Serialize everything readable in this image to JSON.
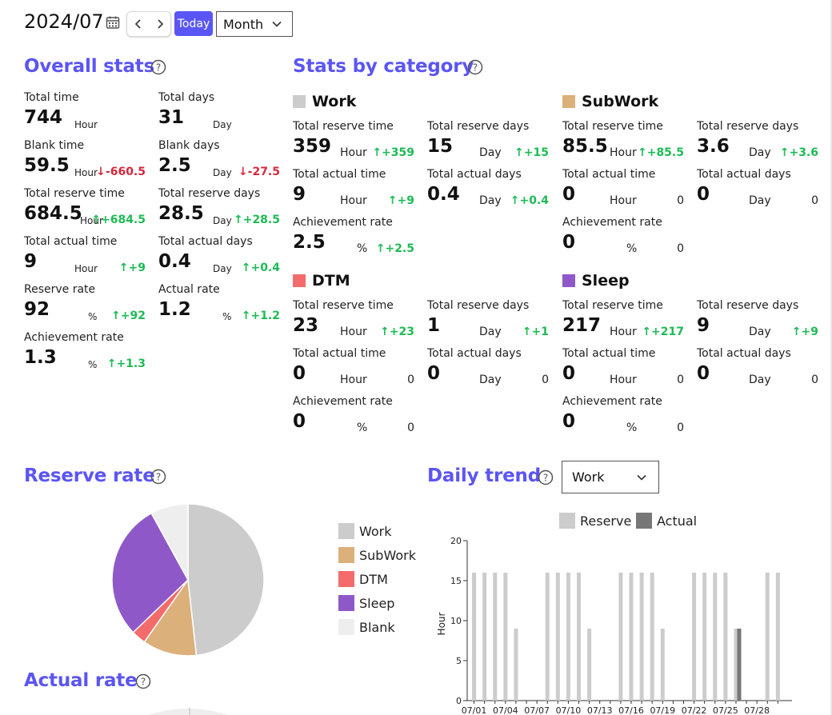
{
  "header": {
    "date": "2024/07",
    "today_label": "Today",
    "period_value": "Month"
  },
  "overall": {
    "title": "Overall stats",
    "stats": [
      {
        "label": "Total time",
        "value": "744",
        "unit": "Hour",
        "diff": ""
      },
      {
        "label": "Total days",
        "value": "31",
        "unit": "Day",
        "diff": ""
      },
      {
        "label": "Blank time",
        "value": "59.5",
        "unit": "Hour",
        "diff": "↓-660.5",
        "tone": "neg"
      },
      {
        "label": "Blank days",
        "value": "2.5",
        "unit": "Day",
        "diff": "↓-27.5",
        "tone": "neg"
      },
      {
        "label": "Total reserve time",
        "value": "684.5",
        "unit": "Hour",
        "diff": "↑+684.5",
        "tone": "pos"
      },
      {
        "label": "Total reserve days",
        "value": "28.5",
        "unit": "Day",
        "diff": "↑+28.5",
        "tone": "pos"
      },
      {
        "label": "Total actual time",
        "value": "9",
        "unit": "Hour",
        "diff": "↑+9",
        "tone": "pos"
      },
      {
        "label": "Total actual days",
        "value": "0.4",
        "unit": "Day",
        "diff": "↑+0.4",
        "tone": "pos"
      },
      {
        "label": "Reserve rate",
        "value": "92",
        "unit": "%",
        "diff": "↑+92",
        "tone": "pos"
      },
      {
        "label": "Actual rate",
        "value": "1.2",
        "unit": "%",
        "diff": "↑+1.2",
        "tone": "pos"
      },
      {
        "label": "Achievement rate",
        "value": "1.3",
        "unit": "%",
        "diff": "↑+1.3",
        "tone": "pos"
      }
    ]
  },
  "by_category": {
    "title": "Stats by category",
    "categories": [
      {
        "name": "Work",
        "color": "#cccccc",
        "stats": [
          {
            "label": "Total reserve time",
            "value": "359",
            "unit": "Hour",
            "diff": "↑+359",
            "tone": "pos"
          },
          {
            "label": "Total reserve days",
            "value": "15",
            "unit": "Day",
            "diff": "↑+15",
            "tone": "pos"
          },
          {
            "label": "Total actual time",
            "value": "9",
            "unit": "Hour",
            "diff": "↑+9",
            "tone": "pos"
          },
          {
            "label": "Total actual days",
            "value": "0.4",
            "unit": "Day",
            "diff": "↑+0.4",
            "tone": "pos"
          },
          {
            "label": "Achievement rate",
            "value": "2.5",
            "unit": "%",
            "diff": "↑+2.5",
            "tone": "pos"
          }
        ]
      },
      {
        "name": "SubWork",
        "color": "#dcb07a",
        "stats": [
          {
            "label": "Total reserve time",
            "value": "85.5",
            "unit": "Hour",
            "diff": "↑+85.5",
            "tone": "pos"
          },
          {
            "label": "Total reserve days",
            "value": "3.6",
            "unit": "Day",
            "diff": "↑+3.6",
            "tone": "pos"
          },
          {
            "label": "Total actual time",
            "value": "0",
            "unit": "Hour",
            "diff": "0",
            "tone": "zero"
          },
          {
            "label": "Total actual days",
            "value": "0",
            "unit": "Day",
            "diff": "0",
            "tone": "zero"
          },
          {
            "label": "Achievement rate",
            "value": "0",
            "unit": "%",
            "diff": "0",
            "tone": "zero"
          }
        ]
      },
      {
        "name": "DTM",
        "color": "#f46b6b",
        "stats": [
          {
            "label": "Total reserve time",
            "value": "23",
            "unit": "Hour",
            "diff": "↑+23",
            "tone": "pos"
          },
          {
            "label": "Total reserve days",
            "value": "1",
            "unit": "Day",
            "diff": "↑+1",
            "tone": "pos"
          },
          {
            "label": "Total actual time",
            "value": "0",
            "unit": "Hour",
            "diff": "0",
            "tone": "zero"
          },
          {
            "label": "Total actual days",
            "value": "0",
            "unit": "Day",
            "diff": "0",
            "tone": "zero"
          },
          {
            "label": "Achievement rate",
            "value": "0",
            "unit": "%",
            "diff": "0",
            "tone": "zero"
          }
        ]
      },
      {
        "name": "Sleep",
        "color": "#8f58c8",
        "stats": [
          {
            "label": "Total reserve time",
            "value": "217",
            "unit": "Hour",
            "diff": "↑+217",
            "tone": "pos"
          },
          {
            "label": "Total reserve days",
            "value": "9",
            "unit": "Day",
            "diff": "↑+9",
            "tone": "pos"
          },
          {
            "label": "Total actual time",
            "value": "0",
            "unit": "Hour",
            "diff": "0",
            "tone": "zero"
          },
          {
            "label": "Total actual days",
            "value": "0",
            "unit": "Day",
            "diff": "0",
            "tone": "zero"
          },
          {
            "label": "Achievement rate",
            "value": "0",
            "unit": "%",
            "diff": "0",
            "tone": "zero"
          }
        ]
      }
    ]
  },
  "reserve_rate": {
    "title": "Reserve rate"
  },
  "actual_rate": {
    "title": "Actual rate"
  },
  "daily_trend": {
    "title": "Daily trend",
    "category_value": "Work"
  },
  "chart_data": [
    {
      "type": "pie",
      "labels": [
        "Work",
        "SubWork",
        "DTM",
        "Sleep",
        "Blank"
      ],
      "values": [
        359,
        85.5,
        23,
        217,
        59.5
      ],
      "colors": [
        "#cccccc",
        "#dcb07a",
        "#f46b6b",
        "#8f58c8",
        "#eeeeee"
      ],
      "legend_position": "right"
    },
    {
      "type": "bar",
      "ylabel": "Hour",
      "ylim": [
        0,
        20
      ],
      "yticks": [
        0,
        5,
        10,
        15,
        20
      ],
      "x": [
        "07/01",
        "07/02",
        "07/03",
        "07/04",
        "07/05",
        "07/06",
        "07/07",
        "07/08",
        "07/09",
        "07/10",
        "07/11",
        "07/12",
        "07/13",
        "07/14",
        "07/15",
        "07/16",
        "07/17",
        "07/18",
        "07/19",
        "07/20",
        "07/21",
        "07/22",
        "07/23",
        "07/24",
        "07/25",
        "07/26",
        "07/27",
        "07/28",
        "07/29",
        "07/30"
      ],
      "xtick_labels": [
        "07/01",
        "07/04",
        "07/07",
        "07/10",
        "07/13",
        "07/16",
        "07/19",
        "07/22",
        "07/25",
        "07/28"
      ],
      "series": [
        {
          "name": "Reserve",
          "color": "#cccccc",
          "values": [
            16,
            16,
            16,
            16,
            9,
            0,
            0,
            16,
            16,
            16,
            16,
            9,
            0,
            0,
            16,
            16,
            16,
            16,
            9,
            0,
            0,
            16,
            16,
            16,
            16,
            9,
            0,
            0,
            16,
            16
          ]
        },
        {
          "name": "Actual",
          "color": "#777777",
          "values": [
            0,
            0,
            0,
            0,
            0,
            0,
            0,
            0,
            0,
            0,
            0,
            0,
            0,
            0,
            0,
            0,
            0,
            0,
            0,
            0,
            0,
            0,
            0,
            0,
            0,
            9,
            0,
            0,
            0,
            0
          ]
        }
      ],
      "legend_position": "top"
    }
  ]
}
